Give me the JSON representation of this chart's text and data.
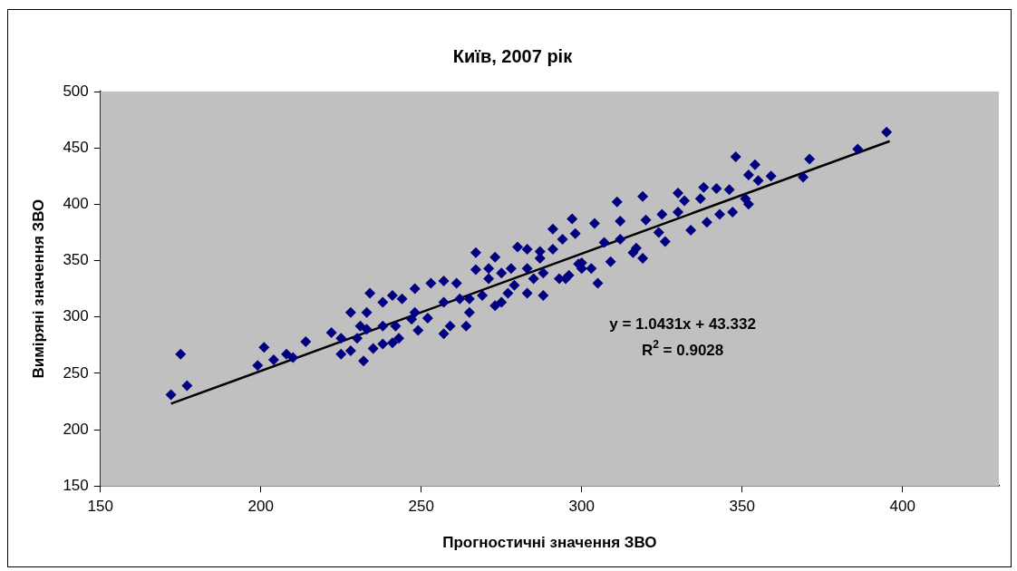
{
  "chart_data": {
    "type": "scatter",
    "title": "Київ, 2007 рік",
    "xlabel": "Прогностичні значення ЗВО",
    "ylabel": "Виміряні значення ЗВО",
    "xlim": [
      150,
      430
    ],
    "xticks": [
      150,
      200,
      250,
      300,
      350,
      400
    ],
    "ylim": [
      150,
      500
    ],
    "yticks": [
      150,
      200,
      250,
      300,
      350,
      400,
      450,
      500
    ],
    "grid": false,
    "legend": false,
    "marker": "diamond",
    "annotations": [
      "y = 1.0431x + 43.332",
      "R$^{2}$ = 0.9028"
    ],
    "series": [
      {
        "color": "#000080",
        "x": [
          172,
          175,
          177,
          199,
          201,
          204,
          208,
          210,
          214,
          395,
          386,
          371,
          369,
          348,
          354,
          352,
          359,
          355,
          330,
          319,
          311,
          338,
          342,
          346,
          332,
          337,
          351,
          352,
          347,
          343,
          339,
          334,
          326,
          324,
          330,
          325,
          320,
          312,
          319,
          316,
          309,
          305,
          303,
          291,
          297,
          304,
          312,
          298,
          307,
          317,
          300,
          295,
          291,
          234,
          267,
          267,
          273,
          280,
          283,
          287,
          294,
          299,
          288,
          283,
          277,
          273,
          269,
          264,
          257,
          259,
          252,
          249,
          248,
          253,
          257,
          261,
          244,
          241,
          238,
          228,
          233,
          233,
          222,
          225,
          225,
          228,
          232,
          235,
          238,
          241,
          243,
          247,
          238,
          231,
          230,
          242,
          248,
          257,
          262,
          265,
          265,
          275,
          279,
          285,
          288,
          293,
          296,
          300,
          275,
          271,
          271,
          278,
          283,
          287
        ],
        "values": [
          231,
          267,
          239,
          257,
          273,
          262,
          267,
          264,
          278,
          464,
          449,
          440,
          424,
          442,
          435,
          426,
          425,
          421,
          410,
          407,
          402,
          415,
          414,
          413,
          403,
          405,
          405,
          400,
          393,
          391,
          384,
          377,
          367,
          375,
          393,
          391,
          386,
          385,
          352,
          357,
          349,
          330,
          343,
          378,
          387,
          383,
          369,
          374,
          366,
          361,
          348,
          334,
          360,
          321,
          357,
          342,
          353,
          362,
          360,
          358,
          369,
          347,
          319,
          321,
          321,
          310,
          319,
          292,
          285,
          292,
          299,
          288,
          325,
          330,
          332,
          330,
          316,
          319,
          313,
          304,
          304,
          289,
          286,
          281,
          267,
          270,
          261,
          272,
          276,
          277,
          281,
          298,
          292,
          292,
          281,
          292,
          304,
          313,
          316,
          316,
          304,
          313,
          328,
          334,
          339,
          334,
          337,
          343,
          339,
          334,
          343,
          343,
          343,
          352
        ]
      },
      {
        "type": "line",
        "color": "#000000",
        "marker": "none",
        "x": [
          172,
          396
        ],
        "values": [
          223,
          456
        ]
      }
    ]
  }
}
